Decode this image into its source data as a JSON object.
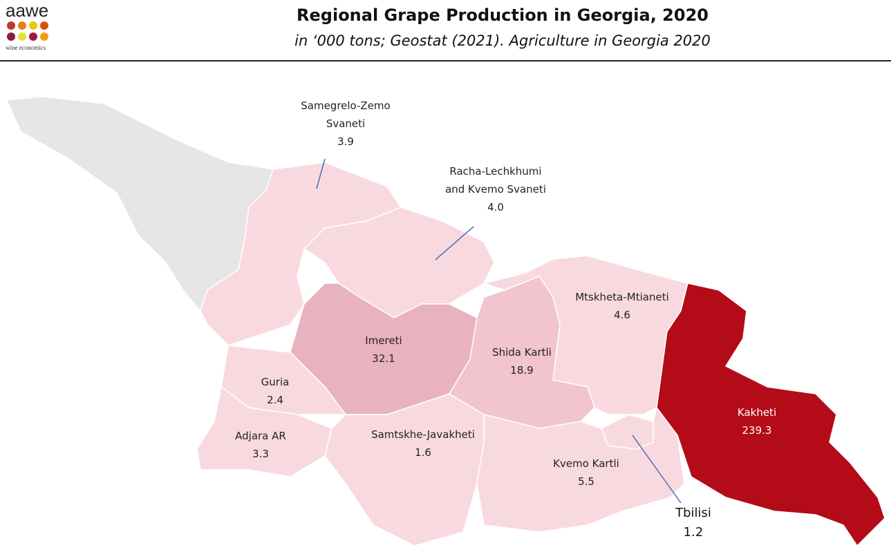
{
  "logo": {
    "name": "aawe",
    "tagline": "wine economics"
  },
  "chart_data": {
    "type": "choropleth",
    "title": "Regional Grape Production in Georgia, 2020",
    "subtitle": "in ‘000 tons; Geostat (2021). Agriculture in Georgia 2020",
    "categories": [
      "Samegrelo-Zemo Svaneti",
      "Racha-Lechkhumi and Kvemo Svaneti",
      "Mtskheta-Mtianeti",
      "Imereti",
      "Shida Kartli",
      "Guria",
      "Adjara AR",
      "Samtskhe-Javakheti",
      "Kvemo Kartli",
      "Kakheti",
      "Tbilisi"
    ],
    "values": [
      3.9,
      4.0,
      4.6,
      32.1,
      18.9,
      2.4,
      3.3,
      1.6,
      5.5,
      239.3,
      1.2
    ],
    "value_labels": [
      "3.9",
      "4.0",
      "4.6",
      "32.1",
      "18.9",
      "2.4",
      "3.3",
      "1.6",
      "5.5",
      "239.3",
      "1.2"
    ],
    "colors": [
      "#f9d9e0",
      "#f9d9e0",
      "#f9d9e0",
      "#e8b2be",
      "#f1c4ce",
      "#f9d9e0",
      "#f9d9e0",
      "#f9d9e0",
      "#f9d9e0",
      "#b30b18",
      "#f9d9e0"
    ]
  }
}
